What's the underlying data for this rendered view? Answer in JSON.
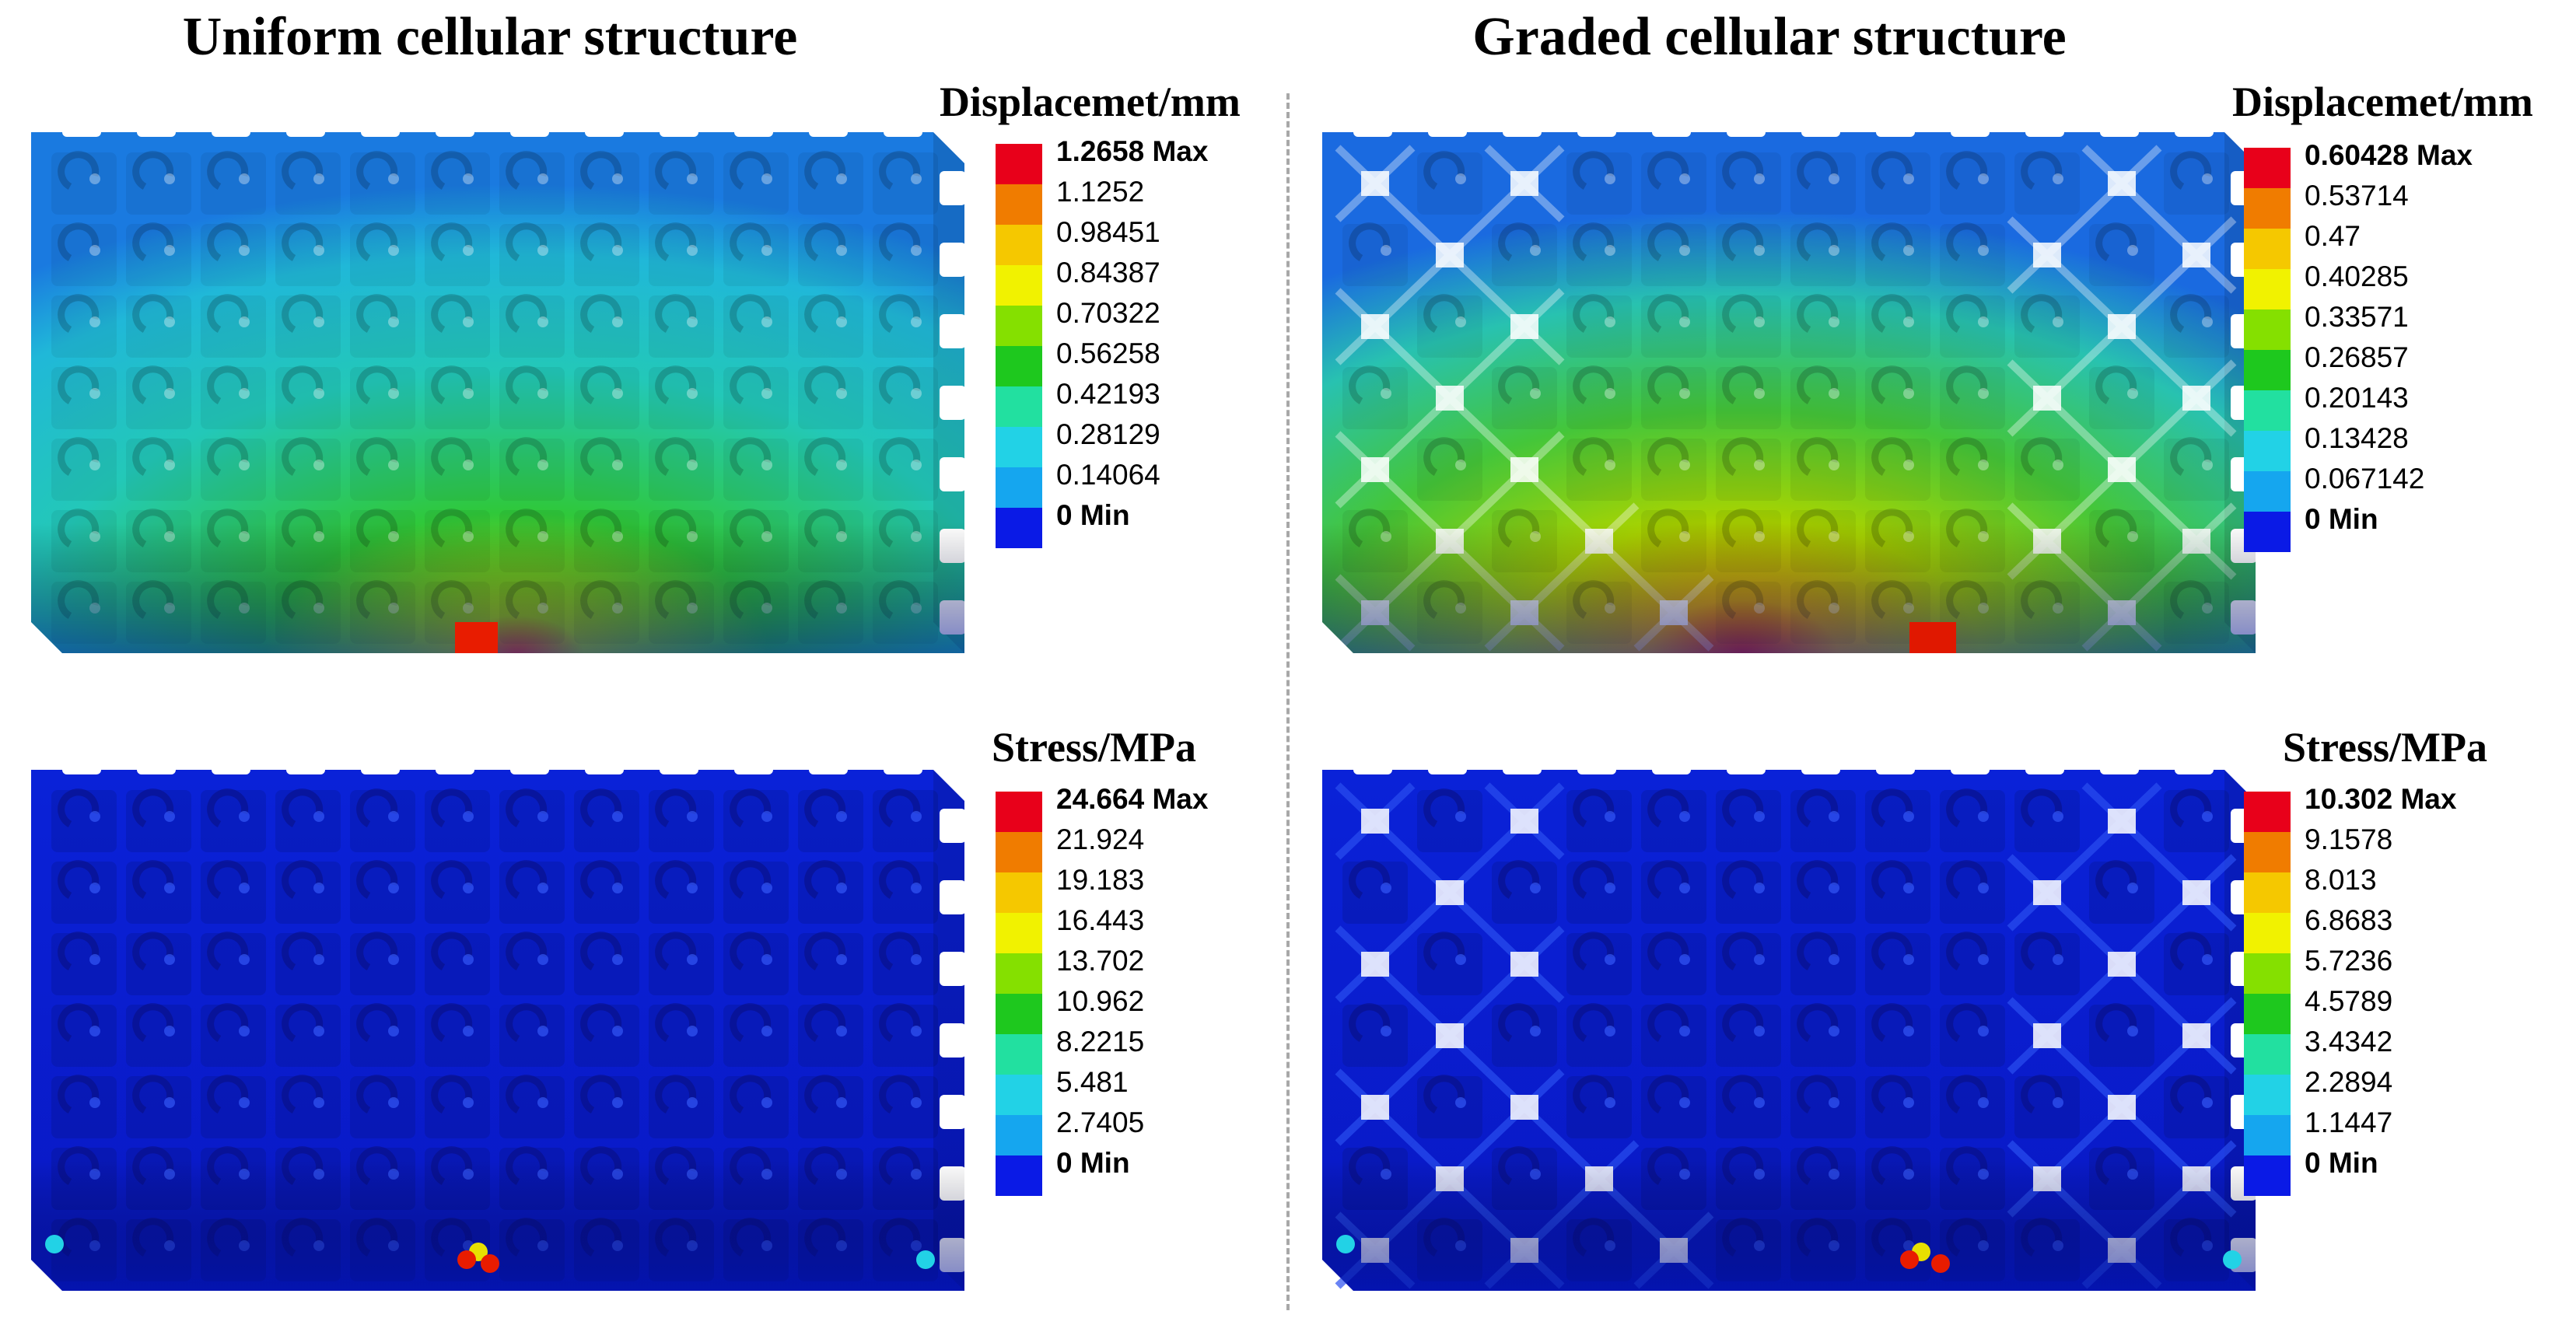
{
  "titles": {
    "uniform": "Uniform cellular structure",
    "graded": "Graded cellular structure"
  },
  "colors": {
    "legend_scale": [
      "#e8001a",
      "#f07c00",
      "#f5c800",
      "#f1f200",
      "#85e000",
      "#1ec81e",
      "#22e0a0",
      "#22d2e6",
      "#15a6ef",
      "#0a1ae6"
    ],
    "stress_background": "#0a1fd6"
  },
  "panels": [
    {
      "id": "uniform-displacement",
      "structure": "uniform",
      "field": "displacement",
      "legend_title": "Displacemet/mm",
      "legend_labels": [
        "1.2658 Max",
        "1.1252",
        "0.98451",
        "0.84387",
        "0.70322",
        "0.56258",
        "0.42193",
        "0.28129",
        "0.14064",
        "0 Min"
      ]
    },
    {
      "id": "graded-displacement",
      "structure": "graded",
      "field": "displacement",
      "legend_title": "Displacemet/mm",
      "legend_labels": [
        "0.60428 Max",
        "0.53714",
        "0.47",
        "0.40285",
        "0.33571",
        "0.26857",
        "0.20143",
        "0.13428",
        "0.067142",
        "0 Min"
      ]
    },
    {
      "id": "uniform-stress",
      "structure": "uniform",
      "field": "stress",
      "legend_title": "Stress/MPa",
      "legend_labels": [
        "24.664 Max",
        "21.924",
        "19.183",
        "16.443",
        "13.702",
        "10.962",
        "8.2215",
        "5.481",
        "2.7405",
        "0 Min"
      ]
    },
    {
      "id": "graded-stress",
      "structure": "graded",
      "field": "stress",
      "legend_title": "Stress/MPa",
      "legend_labels": [
        "10.302 Max",
        "9.1578",
        "8.013",
        "6.8683",
        "5.7236",
        "4.5789",
        "3.4342",
        "2.2894",
        "1.1447",
        "0 Min"
      ]
    }
  ]
}
